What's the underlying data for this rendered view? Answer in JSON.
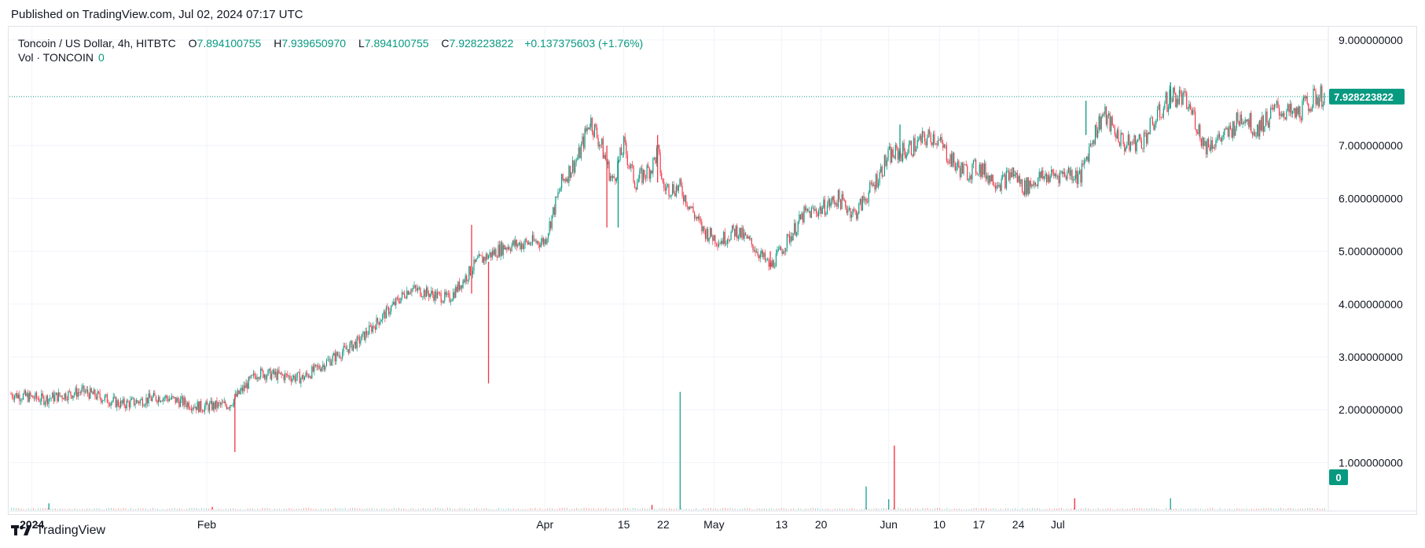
{
  "published": "Published on TradingView.com, Jul 02, 2024 07:17 UTC",
  "legend": {
    "symbol": "Toncoin / US Dollar, 4h, HITBTC",
    "o_label": "O",
    "o": "7.894100755",
    "h_label": "H",
    "h": "7.939650970",
    "l_label": "L",
    "l": "7.894100755",
    "c_label": "C",
    "c": "7.928223822",
    "change": "+0.137375603 (+1.76%)"
  },
  "volume": {
    "label": "Vol · TONCOIN",
    "value": "0"
  },
  "last_price_label": "7.928223822",
  "volume_badge": "0",
  "footer_brand": "TradingView",
  "colors": {
    "up": "#089981",
    "down": "#f23645",
    "grid": "#f0f3fa",
    "price_line": "#089981"
  },
  "chart_data": {
    "type": "candlestick",
    "title": "Toncoin / US Dollar, 4h, HITBTC",
    "y_ticks": [
      "9.000000000",
      "7.000000000",
      "6.000000000",
      "5.000000000",
      "4.000000000",
      "3.000000000",
      "2.000000000",
      "1.000000000"
    ],
    "y_tick_values": [
      9,
      7,
      6,
      5,
      4,
      3,
      2,
      1
    ],
    "ylim": [
      0.5,
      9.0
    ],
    "x_ticks": [
      "2024",
      "Feb",
      "Apr",
      "15",
      "22",
      "May",
      "13",
      "20",
      "Jun",
      "10",
      "17",
      "24",
      "Jul"
    ],
    "x_tick_dates": [
      "2024-01-01",
      "2024-02-01",
      "2024-04-01",
      "2024-04-15",
      "2024-04-22",
      "2024-05-01",
      "2024-05-13",
      "2024-05-20",
      "2024-06-01",
      "2024-06-10",
      "2024-06-17",
      "2024-06-24",
      "2024-07-01"
    ],
    "bold_x_ticks": [
      "2024"
    ],
    "last_price": 7.928223822,
    "price_anchors": [
      {
        "t": "2023-12-28",
        "p": 2.3
      },
      {
        "t": "2024-01-03",
        "p": 2.2
      },
      {
        "t": "2024-01-10",
        "p": 2.35
      },
      {
        "t": "2024-01-17",
        "p": 2.1
      },
      {
        "t": "2024-01-24",
        "p": 2.25
      },
      {
        "t": "2024-01-31",
        "p": 2.05
      },
      {
        "t": "2024-02-05",
        "p": 2.1
      },
      {
        "t": "2024-02-10",
        "p": 2.7
      },
      {
        "t": "2024-02-18",
        "p": 2.6
      },
      {
        "t": "2024-02-28",
        "p": 3.3
      },
      {
        "t": "2024-03-08",
        "p": 4.3
      },
      {
        "t": "2024-03-15",
        "p": 4.1
      },
      {
        "t": "2024-03-20",
        "p": 4.8
      },
      {
        "t": "2024-03-25",
        "p": 5.1
      },
      {
        "t": "2024-04-01",
        "p": 5.2
      },
      {
        "t": "2024-04-04",
        "p": 6.3
      },
      {
        "t": "2024-04-07",
        "p": 6.8
      },
      {
        "t": "2024-04-09",
        "p": 7.5
      },
      {
        "t": "2024-04-11",
        "p": 7.0
      },
      {
        "t": "2024-04-13",
        "p": 6.3
      },
      {
        "t": "2024-04-15",
        "p": 7.0
      },
      {
        "t": "2024-04-17",
        "p": 6.3
      },
      {
        "t": "2024-04-20",
        "p": 6.6
      },
      {
        "t": "2024-04-21",
        "p": 6.9
      },
      {
        "t": "2024-04-22",
        "p": 6.2
      },
      {
        "t": "2024-04-25",
        "p": 6.2
      },
      {
        "t": "2024-04-27",
        "p": 5.8
      },
      {
        "t": "2024-04-29",
        "p": 5.4
      },
      {
        "t": "2024-05-02",
        "p": 5.2
      },
      {
        "t": "2024-05-05",
        "p": 5.4
      },
      {
        "t": "2024-05-08",
        "p": 5.1
      },
      {
        "t": "2024-05-11",
        "p": 4.7
      },
      {
        "t": "2024-05-14",
        "p": 5.2
      },
      {
        "t": "2024-05-17",
        "p": 5.7
      },
      {
        "t": "2024-05-20",
        "p": 5.8
      },
      {
        "t": "2024-05-23",
        "p": 6.0
      },
      {
        "t": "2024-05-26",
        "p": 5.7
      },
      {
        "t": "2024-05-29",
        "p": 6.2
      },
      {
        "t": "2024-06-01",
        "p": 6.8
      },
      {
        "t": "2024-06-04",
        "p": 6.9
      },
      {
        "t": "2024-06-07",
        "p": 7.1
      },
      {
        "t": "2024-06-09",
        "p": 7.2
      },
      {
        "t": "2024-06-11",
        "p": 6.9
      },
      {
        "t": "2024-06-13",
        "p": 6.6
      },
      {
        "t": "2024-06-15",
        "p": 6.5
      },
      {
        "t": "2024-06-17",
        "p": 6.6
      },
      {
        "t": "2024-06-19",
        "p": 6.4
      },
      {
        "t": "2024-06-21",
        "p": 6.3
      },
      {
        "t": "2024-06-23",
        "p": 6.5
      },
      {
        "t": "2024-06-25",
        "p": 6.2
      },
      {
        "t": "2024-06-28",
        "p": 6.4
      },
      {
        "t": "2024-07-01",
        "p": 6.45
      },
      {
        "t": "2024-07-03",
        "p": 6.5
      },
      {
        "t": "2024-07-05",
        "p": 6.4
      },
      {
        "t": "2024-07-07",
        "p": 7.1
      },
      {
        "t": "2024-07-09",
        "p": 7.6
      },
      {
        "t": "2024-07-11",
        "p": 7.3
      },
      {
        "t": "2024-07-13",
        "p": 7.0
      },
      {
        "t": "2024-07-16",
        "p": 7.1
      },
      {
        "t": "2024-07-19",
        "p": 7.6
      },
      {
        "t": "2024-07-21",
        "p": 7.95
      },
      {
        "t": "2024-07-23",
        "p": 7.9
      },
      {
        "t": "2024-07-25",
        "p": 7.6
      },
      {
        "t": "2024-07-27",
        "p": 7.0
      },
      {
        "t": "2024-07-29",
        "p": 7.1
      },
      {
        "t": "2024-07-31",
        "p": 7.2
      },
      {
        "t": "2024-08-03",
        "p": 7.6
      },
      {
        "t": "2024-08-05",
        "p": 7.3
      },
      {
        "t": "2024-08-07",
        "p": 7.5
      },
      {
        "t": "2024-08-09",
        "p": 7.7
      },
      {
        "t": "2024-08-12",
        "p": 7.55
      },
      {
        "t": "2024-08-14",
        "p": 7.75
      },
      {
        "t": "2024-08-16",
        "p": 7.93
      }
    ],
    "wicks": [
      {
        "t": "2024-02-06",
        "high": 2.3,
        "low": 1.2,
        "dir": "down"
      },
      {
        "t": "2024-03-19",
        "high": 5.5,
        "low": 4.2,
        "dir": "down"
      },
      {
        "t": "2024-03-22",
        "high": 4.8,
        "low": 2.5,
        "dir": "down"
      },
      {
        "t": "2024-04-12",
        "high": 7.0,
        "low": 5.45,
        "dir": "down"
      },
      {
        "t": "2024-04-14",
        "high": 6.8,
        "low": 5.45,
        "dir": "up"
      },
      {
        "t": "2024-04-21",
        "high": 7.2,
        "low": 6.3,
        "dir": "down"
      },
      {
        "t": "2024-05-11",
        "high": 5.0,
        "low": 4.65,
        "dir": "down"
      },
      {
        "t": "2024-06-03",
        "high": 7.4,
        "low": 6.7,
        "dir": "up"
      },
      {
        "t": "2024-07-06",
        "high": 7.85,
        "low": 7.2,
        "dir": "up"
      },
      {
        "t": "2024-07-21",
        "high": 8.2,
        "low": 7.7,
        "dir": "up"
      }
    ],
    "volume_spikes": [
      {
        "t": "2024-04-25",
        "v": 2.3,
        "dir": "up"
      },
      {
        "t": "2024-05-28",
        "v": 0.45,
        "dir": "up"
      },
      {
        "t": "2024-06-01",
        "v": 0.2,
        "dir": "up"
      },
      {
        "t": "2024-06-02",
        "v": 1.25,
        "dir": "down"
      },
      {
        "t": "2024-07-04",
        "v": 0.22,
        "dir": "down"
      },
      {
        "t": "2024-07-21",
        "v": 0.22,
        "dir": "up"
      },
      {
        "t": "2024-02-02",
        "v": 0.05,
        "dir": "down"
      },
      {
        "t": "2024-04-20",
        "v": 0.09,
        "dir": "down"
      },
      {
        "t": "2024-01-04",
        "v": 0.12,
        "dir": "up"
      }
    ]
  }
}
